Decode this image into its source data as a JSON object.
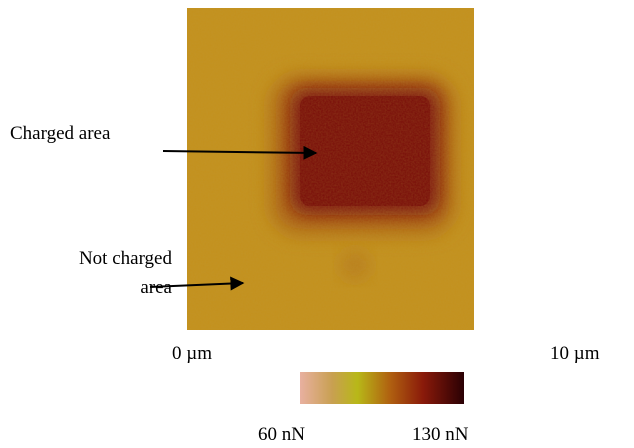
{
  "annotations": {
    "charged": "Charged area",
    "not_charged": [
      "Not charged",
      "area"
    ]
  },
  "scale": {
    "start": "0 µm",
    "end": "10 µm"
  },
  "colorbar": {
    "min": "60 nN",
    "max": "130 nN"
  }
}
